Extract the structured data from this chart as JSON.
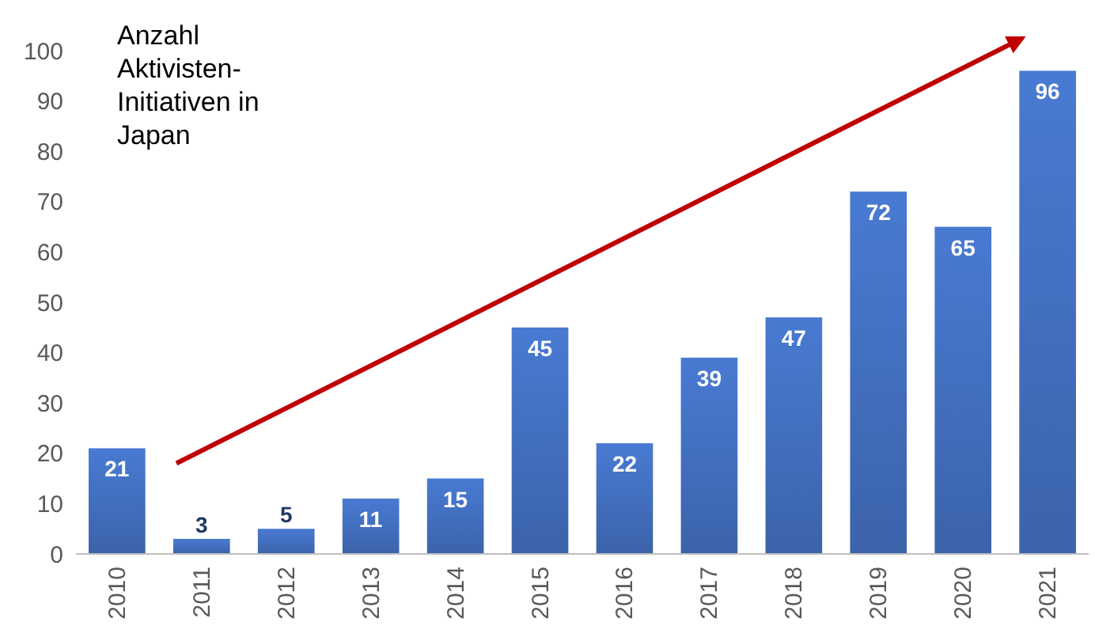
{
  "chart_data": {
    "type": "bar",
    "title": "Anzahl\nAktivisten-\nInitiativen in\nJapan",
    "categories": [
      "2010",
      "2011",
      "2012",
      "2013",
      "2014",
      "2015",
      "2016",
      "2017",
      "2018",
      "2019",
      "2020",
      "2021"
    ],
    "values": [
      21,
      3,
      5,
      11,
      15,
      45,
      22,
      39,
      47,
      72,
      65,
      96
    ],
    "color": "#4472c4",
    "ylim": [
      0,
      100
    ],
    "yticks": [
      0,
      10,
      20,
      30,
      40,
      50,
      60,
      70,
      80,
      90,
      100
    ],
    "data_labels": true,
    "grid": false
  }
}
